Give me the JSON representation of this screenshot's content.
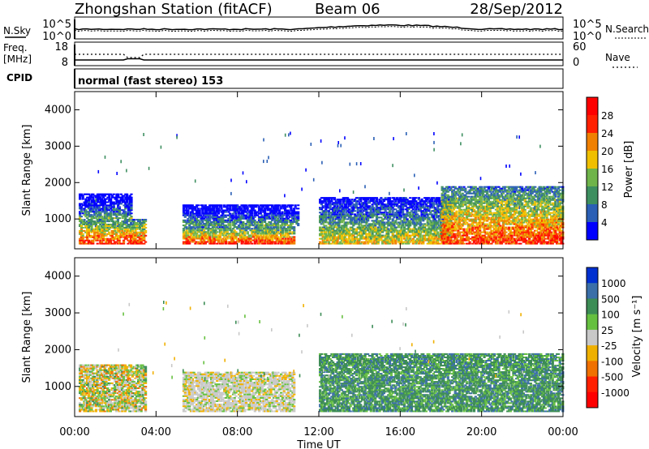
{
  "header": {
    "station": "Zhongshan Station (fitACF)",
    "beam": "Beam 06",
    "date": "28/Sep/2012"
  },
  "noise_panel": {
    "left_label": "N.Sky",
    "right_label": "N.Search",
    "left_ticks": [
      "10^5",
      "10^0"
    ],
    "right_ticks": [
      "10^5",
      "10^0"
    ]
  },
  "freq_panel": {
    "left_label_1": "Freq.",
    "left_label_2": "[MHz]",
    "right_label": "Nave",
    "left_ticks": [
      "18",
      "8"
    ],
    "right_ticks": [
      "60",
      "0"
    ]
  },
  "cpid": {
    "label": "CPID",
    "value": "normal (fast stereo) 153"
  },
  "axes": {
    "xlabel": "Time UT",
    "x_ticks": [
      "00:00",
      "04:00",
      "08:00",
      "12:00",
      "16:00",
      "20:00",
      "00:00"
    ],
    "ylabel": "Slant Range [km]",
    "y_ticks": [
      "1000",
      "2000",
      "3000",
      "4000"
    ]
  },
  "power_colorbar": {
    "label": "Power [dB]",
    "ticks": [
      "4",
      "8",
      "12",
      "16",
      "20",
      "24",
      "28"
    ],
    "colors": [
      "#0000ff",
      "#2a5fb5",
      "#3e8f60",
      "#6fb44a",
      "#f0c000",
      "#f08000",
      "#ff2000",
      "#ff0000"
    ]
  },
  "velocity_colorbar": {
    "label": "Velocity [m s⁻¹]",
    "ticks": [
      "1000",
      "500",
      "100",
      "25",
      "-25",
      "-100",
      "-500",
      "-1000"
    ],
    "colors": [
      "#0030d0",
      "#3a6fa8",
      "#3c8c55",
      "#66c040",
      "#c8c8c8",
      "#f0b000",
      "#f07000",
      "#ff2000",
      "#ff0000"
    ]
  },
  "chart_data": {
    "type": "heatmap",
    "x_range": [
      "00:00",
      "24:00"
    ],
    "ylim": [
      180,
      4500
    ],
    "power_regions": [
      {
        "t_start": 0.2,
        "t_end": 3.5,
        "r_start": 300,
        "r_end": 1000,
        "level": "high"
      },
      {
        "t_start": 0.2,
        "t_end": 2.8,
        "r_start": 1000,
        "r_end": 1700,
        "level": "low"
      },
      {
        "t_start": 5.3,
        "t_end": 10.8,
        "r_start": 300,
        "r_end": 800,
        "level": "high"
      },
      {
        "t_start": 5.3,
        "t_end": 11.0,
        "r_start": 800,
        "r_end": 1400,
        "level": "low"
      },
      {
        "t_start": 12.0,
        "t_end": 18.5,
        "r_start": 300,
        "r_end": 1600,
        "level": "medium"
      },
      {
        "t_start": 18.0,
        "t_end": 24.0,
        "r_start": 300,
        "r_end": 1900,
        "level": "high"
      }
    ],
    "velocity_regions": [
      {
        "t_start": 0.2,
        "t_end": 3.5,
        "r_start": 300,
        "r_end": 1600,
        "level": "mixed"
      },
      {
        "t_start": 5.3,
        "t_end": 10.8,
        "r_start": 300,
        "r_end": 1400,
        "level": "near-zero"
      },
      {
        "t_start": 12.0,
        "t_end": 24.0,
        "r_start": 300,
        "r_end": 1900,
        "level": "positive"
      }
    ]
  }
}
